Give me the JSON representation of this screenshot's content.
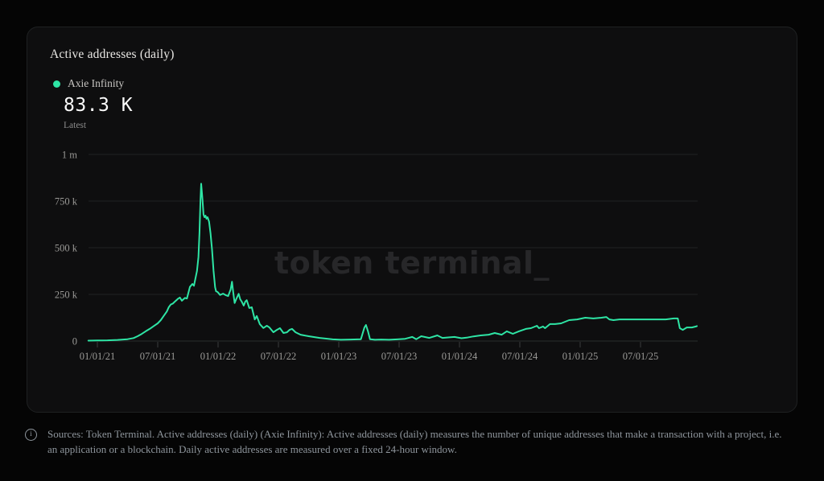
{
  "card": {
    "title": "Active addresses (daily)",
    "legend": {
      "series_label": "Axie Infinity",
      "dot_color": "#2ee5a5"
    },
    "kpi": {
      "value": "83.3 K",
      "caption": "Latest"
    },
    "watermark": "token terminal_"
  },
  "footer": {
    "icon": "info-circle",
    "text": "Sources: Token Terminal. Active addresses (daily) (Axie Infinity): Active addresses (daily) measures the number of unique addresses that make a transaction with a project, i.e. an application or a blockchain. Daily active addresses are measured over a fixed 24-hour window."
  },
  "chart_data": {
    "type": "line",
    "title": "Active addresses (daily)",
    "x_unit": "months_since_2021-01",
    "y_unit": "thousands_of_addresses",
    "ylim": [
      0,
      1000
    ],
    "x_range_months": [
      -0.9,
      59.6
    ],
    "grid": "horizontal",
    "legend_position": "top-left",
    "y_ticks": [
      {
        "value": 0,
        "label": "0"
      },
      {
        "value": 250,
        "label": "250 k"
      },
      {
        "value": 500,
        "label": "500 k"
      },
      {
        "value": 750,
        "label": "750 k"
      },
      {
        "value": 1000,
        "label": "1 m"
      }
    ],
    "x_ticks": [
      {
        "month": 0,
        "label": "01/01/21"
      },
      {
        "month": 6,
        "label": "07/01/21"
      },
      {
        "month": 12,
        "label": "01/01/22"
      },
      {
        "month": 18,
        "label": "07/01/22"
      },
      {
        "month": 24,
        "label": "01/01/23"
      },
      {
        "month": 30,
        "label": "07/01/23"
      },
      {
        "month": 36,
        "label": "01/01/24"
      },
      {
        "month": 42,
        "label": "07/01/24"
      },
      {
        "month": 48,
        "label": "01/01/25"
      },
      {
        "month": 54,
        "label": "07/01/25"
      }
    ],
    "series": [
      {
        "name": "Axie Infinity",
        "color": "#2ee5a5",
        "latest_label": "83.3 K",
        "peak": {
          "month": 10.32,
          "value_k": 843
        },
        "points": [
          [
            -0.9,
            2
          ],
          [
            0,
            3
          ],
          [
            1,
            4
          ],
          [
            2,
            6
          ],
          [
            3,
            10
          ],
          [
            3.6,
            16
          ],
          [
            4,
            26
          ],
          [
            4.4,
            38
          ],
          [
            4.8,
            52
          ],
          [
            5.2,
            65
          ],
          [
            5.6,
            80
          ],
          [
            6,
            95
          ],
          [
            6.3,
            112
          ],
          [
            6.6,
            135
          ],
          [
            6.9,
            158
          ],
          [
            7.1,
            182
          ],
          [
            7.3,
            196
          ],
          [
            7.5,
            201
          ],
          [
            7.7,
            211
          ],
          [
            8,
            226
          ],
          [
            8.2,
            233
          ],
          [
            8.4,
            216
          ],
          [
            8.7,
            231
          ],
          [
            8.9,
            228
          ],
          [
            9.2,
            290
          ],
          [
            9.45,
            306
          ],
          [
            9.6,
            296
          ],
          [
            9.9,
            376
          ],
          [
            10.05,
            450
          ],
          [
            10.15,
            580
          ],
          [
            10.25,
            750
          ],
          [
            10.32,
            843
          ],
          [
            10.45,
            760
          ],
          [
            10.55,
            678
          ],
          [
            10.65,
            664
          ],
          [
            10.75,
            672
          ],
          [
            10.85,
            655
          ],
          [
            10.95,
            664
          ],
          [
            11.1,
            640
          ],
          [
            11.25,
            578
          ],
          [
            11.4,
            490
          ],
          [
            11.55,
            375
          ],
          [
            11.7,
            289
          ],
          [
            11.8,
            267
          ],
          [
            11.95,
            263
          ],
          [
            12.2,
            247
          ],
          [
            12.5,
            254
          ],
          [
            12.75,
            246
          ],
          [
            13,
            241
          ],
          [
            13.25,
            276
          ],
          [
            13.38,
            318
          ],
          [
            13.5,
            262
          ],
          [
            13.65,
            204
          ],
          [
            13.8,
            224
          ],
          [
            14.05,
            253
          ],
          [
            14.2,
            224
          ],
          [
            14.35,
            211
          ],
          [
            14.55,
            190
          ],
          [
            14.7,
            211
          ],
          [
            14.85,
            219
          ],
          [
            15.1,
            177
          ],
          [
            15.35,
            181
          ],
          [
            15.65,
            116
          ],
          [
            15.85,
            134
          ],
          [
            16.15,
            90
          ],
          [
            16.5,
            70
          ],
          [
            16.85,
            82
          ],
          [
            17.1,
            73
          ],
          [
            17.5,
            47
          ],
          [
            17.85,
            60
          ],
          [
            18.15,
            69
          ],
          [
            18.5,
            43
          ],
          [
            18.85,
            47
          ],
          [
            19.1,
            60
          ],
          [
            19.35,
            65
          ],
          [
            19.7,
            47
          ],
          [
            20.2,
            34
          ],
          [
            21,
            26
          ],
          [
            22.1,
            17
          ],
          [
            23.4,
            9
          ],
          [
            24.2,
            7
          ],
          [
            25.2,
            8
          ],
          [
            26.2,
            10
          ],
          [
            26.55,
            73
          ],
          [
            26.7,
            86
          ],
          [
            26.9,
            52
          ],
          [
            27.1,
            10
          ],
          [
            27.6,
            7
          ],
          [
            28.2,
            8
          ],
          [
            29,
            7
          ],
          [
            29.8,
            9
          ],
          [
            30.6,
            12
          ],
          [
            31.3,
            22
          ],
          [
            31.7,
            10
          ],
          [
            32.2,
            26
          ],
          [
            33,
            17
          ],
          [
            33.8,
            30
          ],
          [
            34.3,
            17
          ],
          [
            35,
            20
          ],
          [
            35.5,
            22
          ],
          [
            36.2,
            15
          ],
          [
            36.7,
            18
          ],
          [
            37.4,
            25
          ],
          [
            38.1,
            30
          ],
          [
            38.9,
            34
          ],
          [
            39.5,
            43
          ],
          [
            40.2,
            34
          ],
          [
            40.7,
            52
          ],
          [
            41.3,
            39
          ],
          [
            41.9,
            52
          ],
          [
            42.6,
            65
          ],
          [
            43.1,
            69
          ],
          [
            43.7,
            82
          ],
          [
            43.9,
            69
          ],
          [
            44.3,
            78
          ],
          [
            44.5,
            69
          ],
          [
            45,
            91
          ],
          [
            45.5,
            91
          ],
          [
            46.1,
            95
          ],
          [
            46.9,
            112
          ],
          [
            47.7,
            116
          ],
          [
            48.5,
            125
          ],
          [
            49.3,
            121
          ],
          [
            50.1,
            125
          ],
          [
            50.6,
            129
          ],
          [
            50.9,
            116
          ],
          [
            51.3,
            112
          ],
          [
            51.9,
            116
          ],
          [
            52.7,
            116
          ],
          [
            53.5,
            116
          ],
          [
            54.6,
            116
          ],
          [
            55.7,
            116
          ],
          [
            56.5,
            116
          ],
          [
            57.3,
            121
          ],
          [
            57.7,
            121
          ],
          [
            57.9,
            69
          ],
          [
            58.2,
            60
          ],
          [
            58.6,
            73
          ],
          [
            59.1,
            73
          ],
          [
            59.5,
            78
          ],
          [
            59.6,
            80
          ]
        ]
      }
    ]
  }
}
